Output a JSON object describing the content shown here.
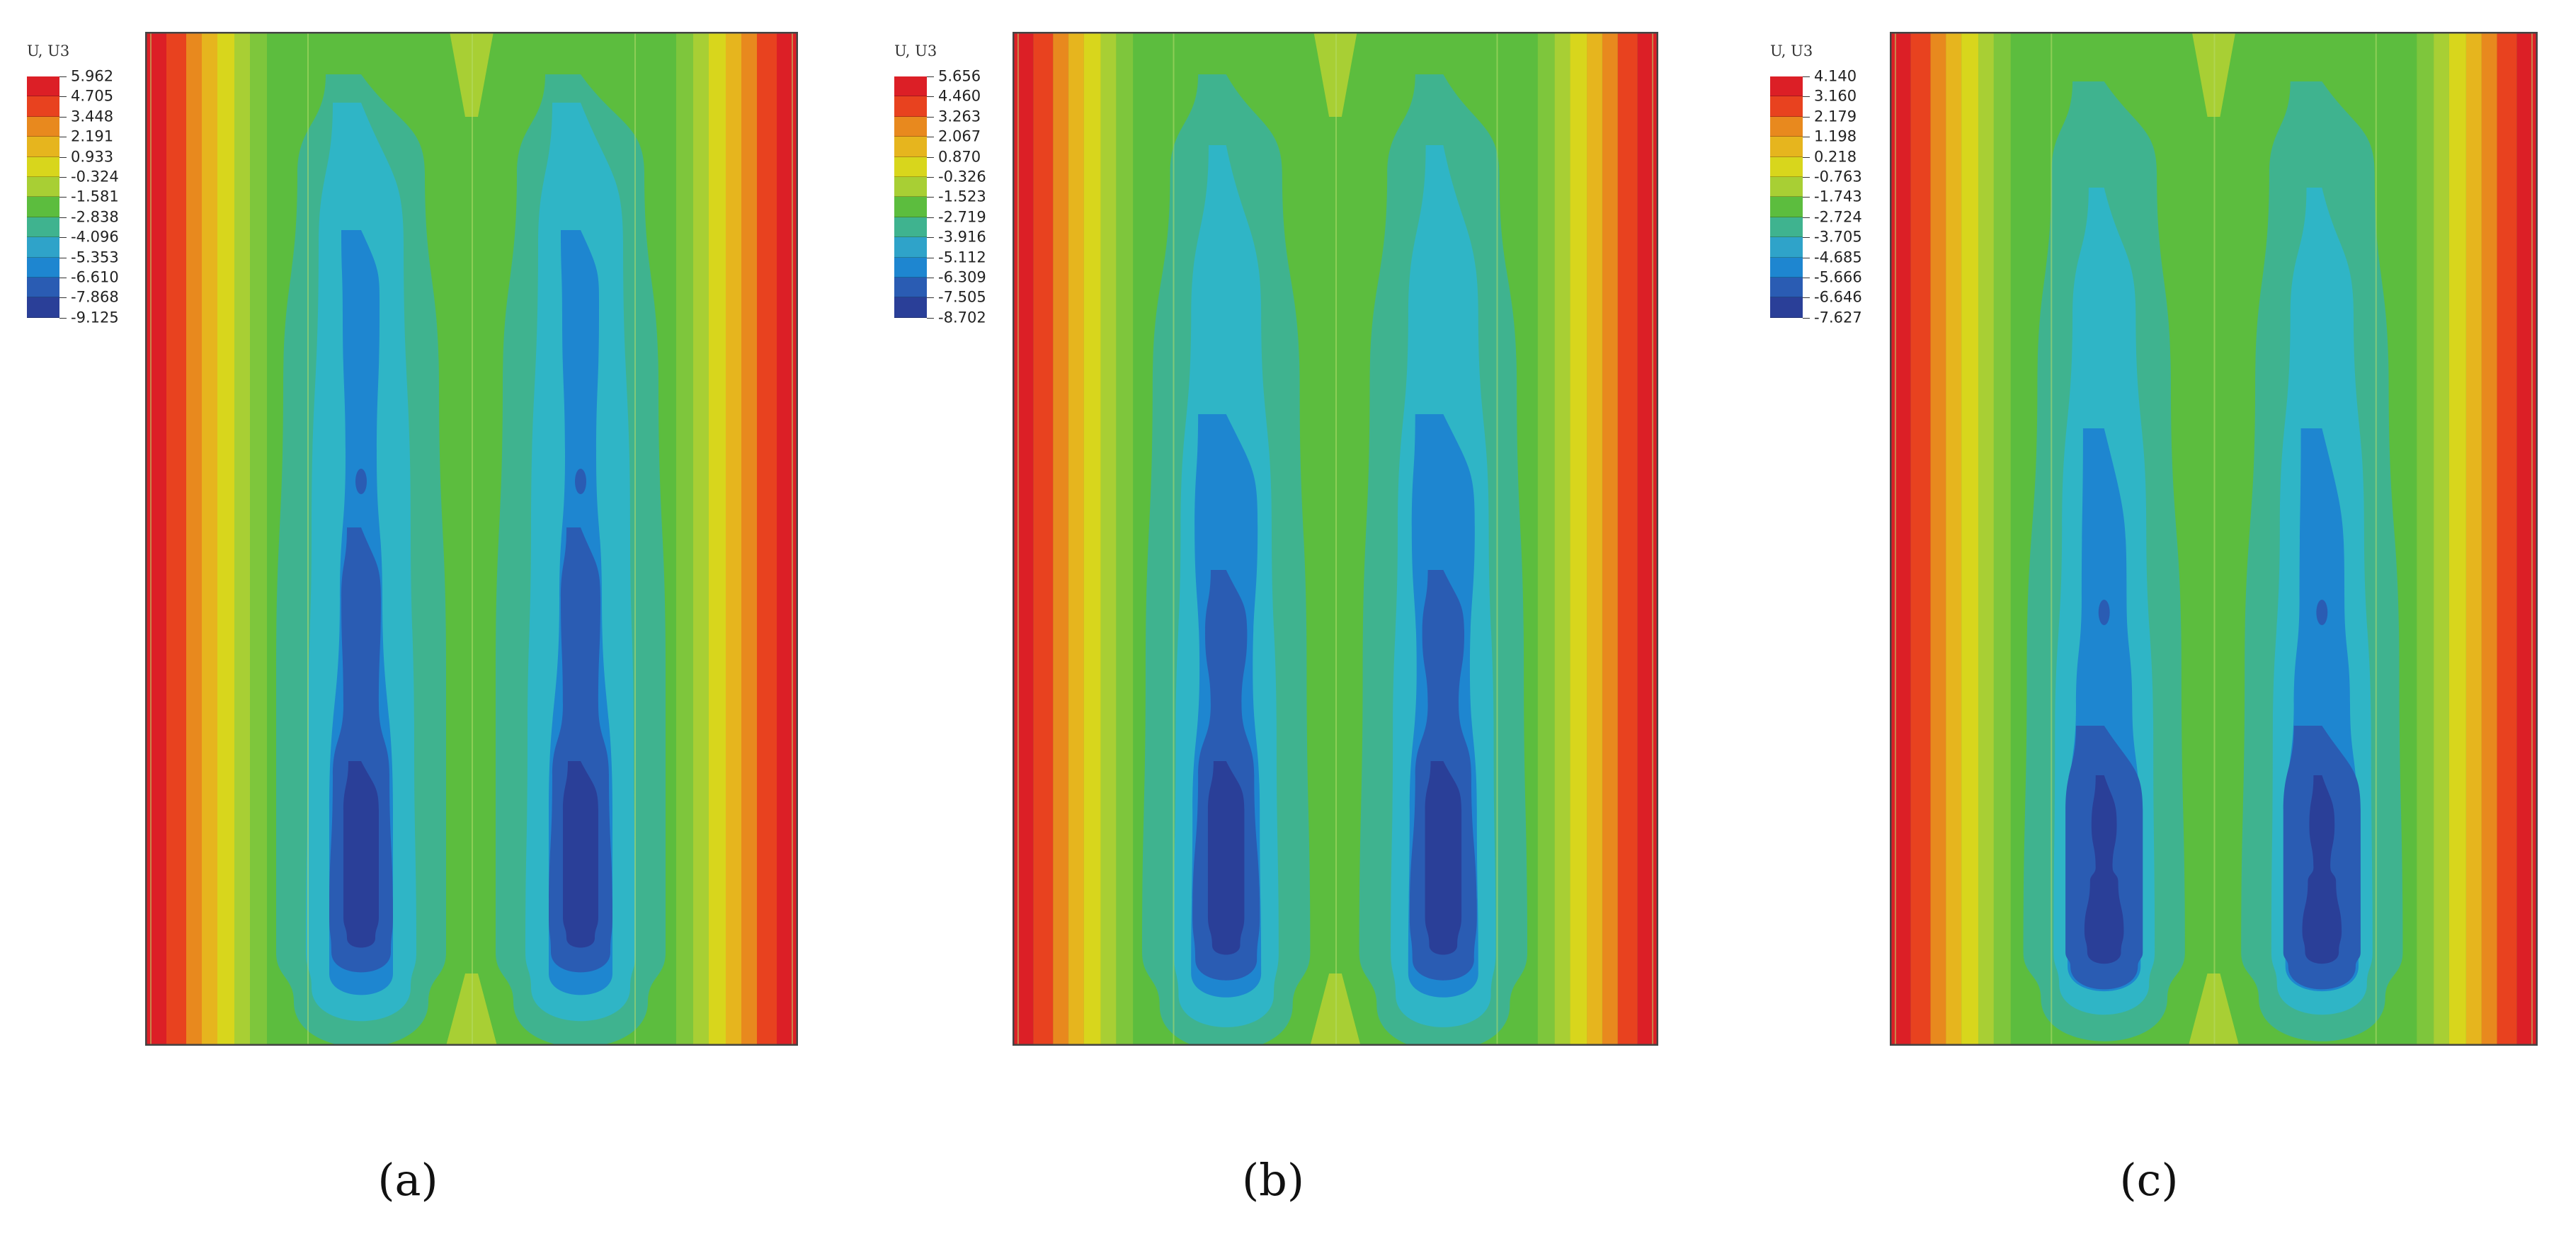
{
  "panels": [
    {
      "caption": "(a)",
      "legend": {
        "title": "U, U3",
        "values": [
          "5.962",
          "4.705",
          "3.448",
          "2.191",
          "0.933",
          "-0.324",
          "-1.581",
          "-2.838",
          "-4.096",
          "-5.353",
          "-6.610",
          "-7.868",
          "-9.125"
        ]
      }
    },
    {
      "caption": "(b)",
      "legend": {
        "title": "U, U3",
        "values": [
          "5.656",
          "4.460",
          "3.263",
          "2.067",
          "0.870",
          "-0.326",
          "-1.523",
          "-2.719",
          "-3.916",
          "-5.112",
          "-6.309",
          "-7.505",
          "-8.702"
        ]
      }
    },
    {
      "caption": "(c)",
      "legend": {
        "title": "U, U3",
        "values": [
          "4.140",
          "3.160",
          "2.179",
          "1.198",
          "0.218",
          "-0.763",
          "-1.743",
          "-2.724",
          "-3.705",
          "-4.685",
          "-5.666",
          "-6.646",
          "-7.627"
        ]
      }
    }
  ],
  "colors": {
    "contour_bands": [
      "#dc1f26",
      "#e8421f",
      "#e8891e",
      "#e6b51e",
      "#d8d61c",
      "#a8cf34",
      "#7ec63c",
      "#5cbd3e",
      "#3fb38f",
      "#2fa3c9",
      "#1e86d0",
      "#2a5cb3",
      "#2a3f98"
    ]
  }
}
